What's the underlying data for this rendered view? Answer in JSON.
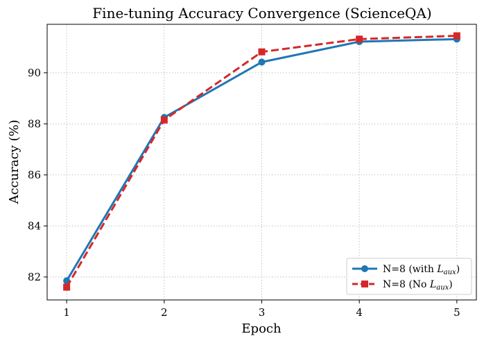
{
  "chart_data": {
    "type": "line",
    "title": "Fine-tuning Accuracy Convergence (ScienceQA)",
    "xlabel": "Epoch",
    "ylabel": "Accuracy (%)",
    "x": [
      1,
      2,
      3,
      4,
      5
    ],
    "xticks": [
      1,
      2,
      3,
      4,
      5
    ],
    "xlim": [
      0.8,
      5.2
    ],
    "yticks": [
      82,
      84,
      86,
      88,
      90
    ],
    "ylim": [
      81.1,
      91.9
    ],
    "grid": true,
    "legend_position": "lower-right",
    "series": [
      {
        "name_main": "N=8 (with ",
        "name_sym": "L",
        "name_sub": "aux",
        "name_end": ")",
        "color": "#1f77b4",
        "linestyle": "solid",
        "marker": "circle",
        "values": [
          81.85,
          88.25,
          90.42,
          91.22,
          91.32
        ]
      },
      {
        "name_main": "N=8 (No ",
        "name_sym": "L",
        "name_sub": "aux",
        "name_end": ")",
        "color": "#d62728",
        "linestyle": "dashed",
        "marker": "square",
        "values": [
          81.6,
          88.15,
          90.82,
          91.32,
          91.45
        ]
      }
    ]
  }
}
